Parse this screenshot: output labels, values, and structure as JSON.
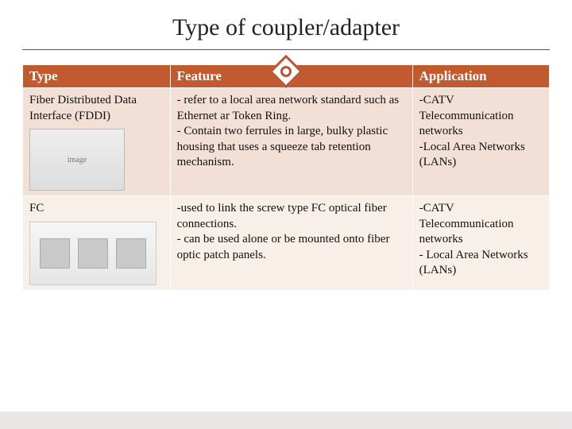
{
  "title": "Type of coupler/adapter",
  "colors": {
    "header_bg": "#c15a2e",
    "header_text": "#ffffff",
    "row_odd_bg": "#f2e0d6",
    "row_even_bg": "#f8efe9",
    "ornament": "#b9562f",
    "title_text": "#222222",
    "body_text": "#111111",
    "footer_bg": "#e8e7e6"
  },
  "table": {
    "columns": [
      "Type",
      "Feature",
      "Application"
    ],
    "column_widths_pct": [
      28,
      46,
      26
    ],
    "header_fontsize_pt": 13,
    "cell_fontsize_pt": 11,
    "rows": [
      {
        "type": "Fiber Distributed Data Interface (FDDI)",
        "feature": "- refer to a local area network standard such as Ethernet ar Token Ring.\n- Contain two ferrules in large, bulky plastic housing that uses a squeeze tab retention mechanism.",
        "application": "-CATV Telecommunication networks\n-Local Area Networks (LANs)"
      },
      {
        "type": "FC",
        "feature": "-used to link the screw type FC optical fiber connections.\n- can be used alone or be mounted onto fiber optic patch panels.",
        "application": "-CATV Telecommunication networks\n- Local Area Networks (LANs)"
      }
    ]
  }
}
